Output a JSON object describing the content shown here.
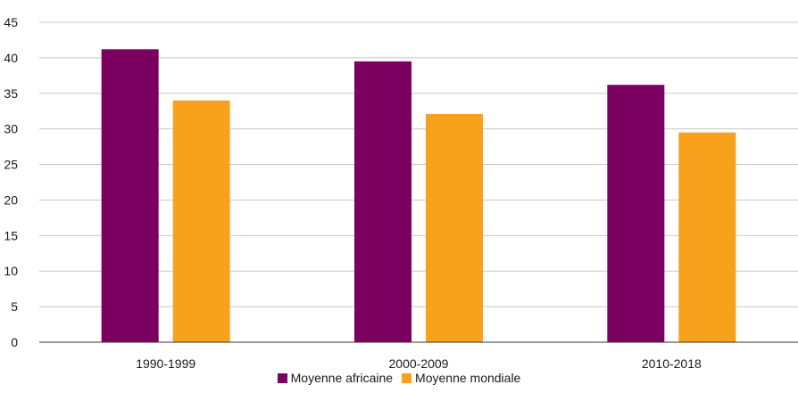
{
  "chart_data": {
    "type": "bar",
    "title": "",
    "xlabel": "",
    "ylabel": "",
    "categories": [
      "1990-1999",
      "2000-2009",
      "2010-2018"
    ],
    "series": [
      {
        "name": "Moyenne africaine",
        "color": "#7B0060",
        "values": [
          41.2,
          39.5,
          36.2
        ]
      },
      {
        "name": "Moyenne mondiale",
        "color": "#F7A11D",
        "values": [
          34.0,
          32.1,
          29.5
        ]
      }
    ],
    "ylim": [
      0,
      45
    ],
    "yticks": [
      0,
      5,
      10,
      15,
      20,
      25,
      30,
      35,
      40,
      45
    ],
    "grid": true,
    "legend_position": "bottom"
  }
}
